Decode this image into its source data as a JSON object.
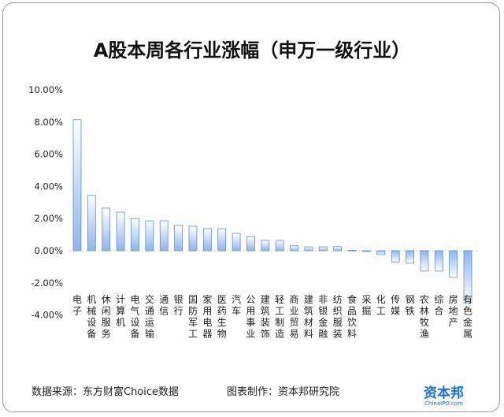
{
  "chart_data": {
    "type": "bar",
    "title": "A股本周各行业涨幅（申万一级行业）",
    "xlabel": "",
    "ylabel": "",
    "ylim": [
      -4,
      10
    ],
    "yticks": [
      "10.00%",
      "8.00%",
      "6.00%",
      "4.00%",
      "2.00%",
      "0.00%",
      "-2.00%",
      "-4.00%"
    ],
    "ytick_values": [
      10,
      8,
      6,
      4,
      2,
      0,
      -2,
      -4
    ],
    "categories": [
      "电子",
      "机械设备",
      "休闲服务",
      "计算机",
      "电气设备",
      "交通运输",
      "通信",
      "银行",
      "国防军工",
      "家用电器",
      "医药生物",
      "汽车",
      "公用事业",
      "建筑装饰",
      "轻工制造",
      "商业贸易",
      "建筑材料",
      "非银金融",
      "纺织服装",
      "食品饮料",
      "采掘",
      "化工",
      "传媒",
      "钢铁",
      "农林牧渔",
      "综合",
      "房地产",
      "有色金属"
    ],
    "values": [
      8.15,
      3.43,
      2.65,
      2.4,
      2.0,
      1.86,
      1.86,
      1.57,
      1.52,
      1.37,
      1.37,
      1.08,
      0.88,
      0.64,
      0.64,
      0.31,
      0.24,
      0.24,
      0.26,
      0.03,
      -0.05,
      -0.24,
      -0.7,
      -0.78,
      -1.27,
      -1.27,
      -1.67,
      -3.24
    ],
    "unit": "%",
    "grid": false,
    "legend": "none"
  },
  "footer": {
    "source": "数据来源：东方财富Choice数据",
    "maker": "图表制作：资本邦研究院"
  },
  "logo": {
    "name": "资本邦",
    "site": "ChinaIPO.com"
  },
  "colors": {
    "bar_top": "#ffffff",
    "bar_bottom": "#8fb4ec",
    "bar_stroke": "#5b8fd8"
  }
}
